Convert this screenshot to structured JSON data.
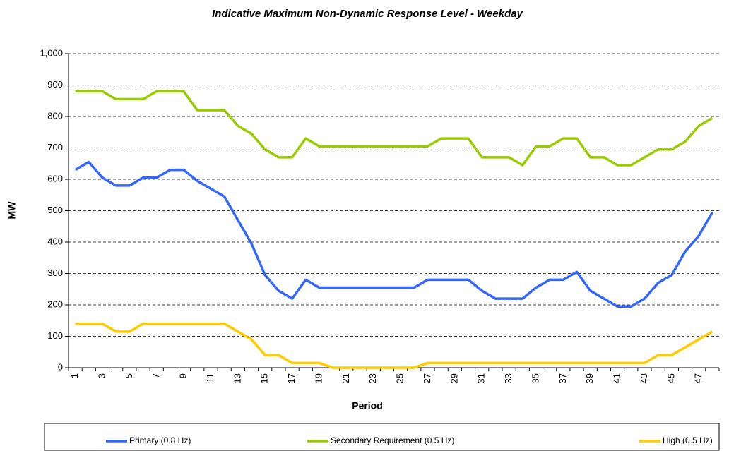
{
  "chart_data": {
    "type": "line",
    "title": "Indicative Maximum Non-Dynamic Response Level - Weekday",
    "x_label": "Period",
    "y_label": "MW",
    "categories": [
      "1",
      null,
      "3",
      null,
      "5",
      null,
      "7",
      null,
      "9",
      null,
      "11",
      null,
      "13",
      null,
      "15",
      null,
      "17",
      null,
      "19",
      null,
      "21",
      null,
      "23",
      null,
      "25",
      null,
      "27",
      null,
      "29",
      null,
      "31",
      null,
      "33",
      null,
      "35",
      null,
      "37",
      null,
      "39",
      null,
      "41",
      null,
      "43",
      null,
      "45",
      null,
      "47",
      null
    ],
    "ylim": [
      0,
      1000
    ],
    "yticks": [
      0,
      100,
      200,
      300,
      400,
      500,
      600,
      700,
      800,
      900,
      {
        "value": 1000,
        "label": "1,000"
      }
    ],
    "grid": true,
    "series": [
      {
        "name": "Primary (0.8 Hz)",
        "color": "#3366ff",
        "values": [
          630,
          655,
          605,
          580,
          580,
          605,
          605,
          630,
          630,
          595,
          570,
          545,
          470,
          395,
          295,
          245,
          220,
          280,
          255,
          255,
          255,
          255,
          255,
          255,
          255,
          255,
          280,
          280,
          280,
          280,
          245,
          220,
          220,
          220,
          255,
          280,
          280,
          305,
          245,
          220,
          195,
          195,
          220,
          270,
          295,
          370,
          420,
          495
        ]
      },
      {
        "name": "Secondary Requirement (0.5 Hz)",
        "color": "#99cc00",
        "values": [
          880,
          880,
          880,
          855,
          855,
          855,
          880,
          880,
          880,
          820,
          820,
          820,
          770,
          745,
          695,
          670,
          670,
          730,
          705,
          705,
          705,
          705,
          705,
          705,
          705,
          705,
          705,
          730,
          730,
          730,
          670,
          670,
          670,
          645,
          705,
          705,
          730,
          730,
          670,
          670,
          645,
          645,
          670,
          695,
          695,
          720,
          770,
          795
        ]
      },
      {
        "name": "High (0.5 Hz)",
        "color": "#ffcc00",
        "values": [
          140,
          140,
          140,
          115,
          115,
          140,
          140,
          140,
          140,
          140,
          140,
          140,
          115,
          90,
          40,
          40,
          15,
          15,
          15,
          0,
          0,
          0,
          0,
          0,
          0,
          0,
          15,
          15,
          15,
          15,
          15,
          15,
          15,
          15,
          15,
          15,
          15,
          15,
          15,
          15,
          15,
          15,
          15,
          40,
          40,
          65,
          90,
          115
        ]
      }
    ]
  }
}
